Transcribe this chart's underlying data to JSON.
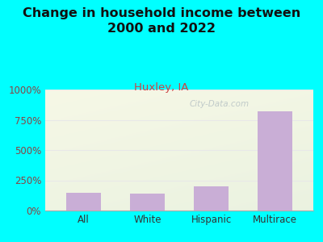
{
  "title": "Change in household income between\n2000 and 2022",
  "subtitle": "Huxley, IA",
  "categories": [
    "All",
    "White",
    "Hispanic",
    "Multirace"
  ],
  "values": [
    150,
    140,
    200,
    820
  ],
  "bar_color": "#c9aed6",
  "background_color": "#00ffff",
  "plot_bg_color_top": "#f5f8ee",
  "plot_bg_color_bottom": "#d8ecc8",
  "title_fontsize": 11.5,
  "subtitle_fontsize": 9.5,
  "subtitle_color": "#cc4444",
  "ytick_color": "#884444",
  "xtick_color": "#333333",
  "ytick_labels": [
    "0%",
    "250%",
    "500%",
    "750%",
    "1000%"
  ],
  "ytick_values": [
    0,
    250,
    500,
    750,
    1000
  ],
  "ylim": [
    0,
    1000
  ],
  "watermark": "City-Data.com",
  "grid_color": "#e8e8e8"
}
